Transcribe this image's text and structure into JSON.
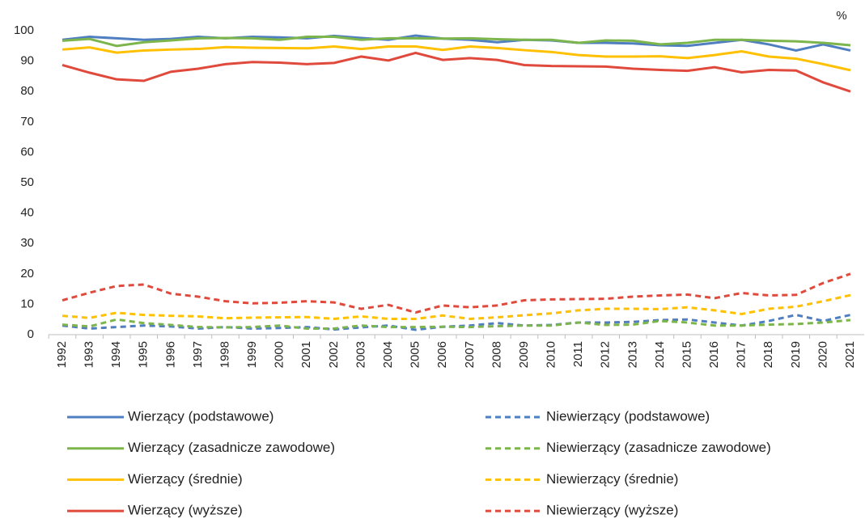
{
  "chart_data": {
    "type": "line",
    "y_unit": "%",
    "x": [
      "1992",
      "1993",
      "1994",
      "1995",
      "1996",
      "1997",
      "1998",
      "1999",
      "2000",
      "2001",
      "2002",
      "2003",
      "2004",
      "2005",
      "2006",
      "2007",
      "2008",
      "2009",
      "2010",
      "2011",
      "2012",
      "2013",
      "2014",
      "2015",
      "2016",
      "2017",
      "2018",
      "2019",
      "2020",
      "2021"
    ],
    "ylim": [
      0,
      100
    ],
    "yticks": [
      0,
      10,
      20,
      30,
      40,
      50,
      60,
      70,
      80,
      90,
      100
    ],
    "grid": false,
    "series": [
      {
        "name": "Wierzący (podstawowe)",
        "color": "#4f7fc0",
        "dashed": false,
        "values": [
          97,
          98,
          97.5,
          97,
          97.3,
          98,
          97.5,
          98,
          97.8,
          97.5,
          98.3,
          97.6,
          97,
          98.4,
          97.4,
          97,
          96.2,
          97,
          96.8,
          96,
          96,
          95.8,
          95.2,
          95,
          96,
          97,
          95.5,
          93.5,
          95.5,
          93.5
        ]
      },
      {
        "name": "Niewierzący (podstawowe)",
        "color": "#4f7fc0",
        "dashed": true,
        "values": [
          3,
          2,
          2.5,
          3,
          2.7,
          2,
          2.5,
          2,
          2.2,
          2.5,
          1.7,
          2.4,
          3,
          1.6,
          2.6,
          3,
          3.8,
          3,
          3.2,
          4,
          4,
          4.2,
          4.8,
          5,
          4,
          3,
          4.5,
          6.5,
          4.5,
          6.5
        ]
      },
      {
        "name": "Wierzący (zasadnicze zawodowe)",
        "color": "#7cb54c",
        "dashed": false,
        "values": [
          96.7,
          97.3,
          95,
          96.2,
          96.8,
          97.5,
          97.6,
          97.5,
          97,
          98,
          98,
          97,
          97.5,
          97.5,
          97.4,
          97.5,
          97.2,
          97,
          97,
          96,
          96.8,
          96.7,
          95.5,
          96,
          97,
          97,
          96.7,
          96.5,
          96,
          95.2
        ]
      },
      {
        "name": "Niewierzący (zasadnicze zawodowe)",
        "color": "#7cb54c",
        "dashed": true,
        "values": [
          3.3,
          2.7,
          5,
          3.8,
          3.2,
          2.5,
          2.4,
          2.5,
          3,
          2,
          2,
          3,
          2.5,
          2.5,
          2.6,
          2.5,
          2.8,
          3,
          3,
          4,
          3.2,
          3.3,
          4.5,
          4,
          3,
          3,
          3.3,
          3.5,
          4,
          4.8
        ]
      },
      {
        "name": "Wierzący (średnie)",
        "color": "#ffc000",
        "dashed": false,
        "values": [
          93.8,
          94.5,
          92.8,
          93.5,
          93.8,
          94,
          94.6,
          94.4,
          94.3,
          94.2,
          94.8,
          94,
          94.8,
          94.8,
          93.7,
          94.8,
          94.3,
          93.6,
          93,
          92,
          91.5,
          91.5,
          91.6,
          91,
          92,
          93.2,
          91.5,
          90.8,
          89,
          87
        ]
      },
      {
        "name": "Niewierzący (średnie)",
        "color": "#ffc000",
        "dashed": true,
        "values": [
          6.2,
          5.5,
          7.2,
          6.5,
          6.2,
          6,
          5.4,
          5.6,
          5.7,
          5.8,
          5.2,
          6,
          5.2,
          5.2,
          6.3,
          5.2,
          5.7,
          6.4,
          7,
          8,
          8.5,
          8.5,
          8.4,
          9,
          8,
          6.8,
          8.5,
          9.2,
          11,
          13
        ]
      },
      {
        "name": "Wierzący (wyższe)",
        "color": "#e04a3c",
        "dashed": false,
        "values": [
          88.7,
          86.2,
          84,
          83.5,
          86.5,
          87.5,
          89,
          89.7,
          89.5,
          89,
          89.4,
          91.5,
          90.2,
          92.7,
          90.4,
          91,
          90.4,
          88.7,
          88.4,
          88.3,
          88.2,
          87.5,
          87.1,
          86.8,
          88,
          86.3,
          87.1,
          86.9,
          83,
          80
        ]
      },
      {
        "name": "Niewierzący (wyższe)",
        "color": "#e04a3c",
        "dashed": true,
        "values": [
          11.3,
          13.8,
          16,
          16.5,
          13.5,
          12.5,
          11,
          10.3,
          10.5,
          11,
          10.6,
          8.5,
          9.8,
          7.3,
          9.6,
          9,
          9.6,
          11.3,
          11.6,
          11.7,
          11.8,
          12.5,
          12.9,
          13.2,
          12,
          13.7,
          12.9,
          13.1,
          17,
          20
        ]
      }
    ]
  }
}
